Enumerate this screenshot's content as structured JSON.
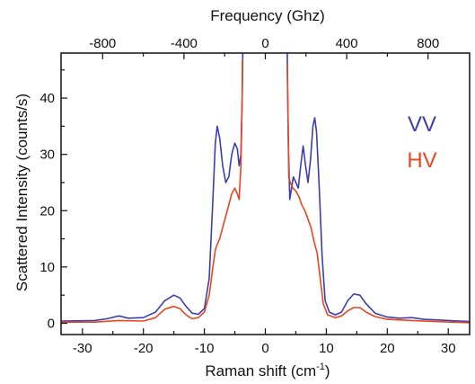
{
  "chart_data": {
    "type": "line",
    "title": "",
    "xlabel": "Raman shift (cm",
    "xlabel_sup": "-1",
    "xlabel_close": ")",
    "ylabel": "Scattered Intensity (counts/s)",
    "top_axis_label": "Frequency (Ghz)",
    "xlim": [
      -33.5,
      33.5
    ],
    "ylim": [
      -2,
      48
    ],
    "x_ticks": [
      -30,
      -20,
      -10,
      0,
      10,
      20,
      30
    ],
    "x_tick_labels": [
      "-30",
      "-20",
      "-10",
      "0",
      "10",
      "20",
      "30"
    ],
    "y_ticks": [
      0,
      10,
      20,
      30,
      40
    ],
    "y_tick_labels": [
      "0",
      "10",
      "20",
      "30",
      "40"
    ],
    "top_ticks_ghz": [
      -800,
      -400,
      0,
      400,
      800
    ],
    "top_tick_labels": [
      "-800",
      "-400",
      "0",
      "400",
      "800"
    ],
    "ghz_per_cm1": 29.9792,
    "grid": false,
    "legend_placement": "right",
    "series": [
      {
        "name": "VV",
        "color": "#3b3fae",
        "segments": [
          [
            [
              -33.5,
              0.4
            ],
            [
              -28,
              0.5
            ],
            [
              -26,
              0.8
            ],
            [
              -24,
              1.3
            ],
            [
              -22.5,
              0.9
            ],
            [
              -20,
              1.0
            ],
            [
              -18,
              2.0
            ],
            [
              -16.5,
              4.0
            ],
            [
              -15,
              5.0
            ],
            [
              -14,
              4.5
            ],
            [
              -13,
              3.0
            ],
            [
              -12,
              1.8
            ],
            [
              -11,
              1.6
            ],
            [
              -10,
              2.6
            ],
            [
              -9.2,
              8
            ],
            [
              -8.6,
              22
            ],
            [
              -8.2,
              32
            ],
            [
              -7.9,
              35
            ],
            [
              -7.5,
              33
            ],
            [
              -7.0,
              28
            ],
            [
              -6.5,
              25
            ],
            [
              -6.0,
              26
            ],
            [
              -5.5,
              30
            ],
            [
              -5.0,
              32
            ],
            [
              -4.6,
              31
            ],
            [
              -4.3,
              28
            ],
            [
              -4.0,
              30
            ],
            [
              -3.8,
              40
            ],
            [
              -3.7,
              48
            ]
          ],
          [
            [
              3.6,
              48
            ],
            [
              3.65,
              42
            ],
            [
              3.8,
              31
            ],
            [
              4.0,
              22
            ],
            [
              4.3,
              24
            ],
            [
              4.6,
              26
            ],
            [
              5.0,
              25
            ],
            [
              5.4,
              24
            ],
            [
              5.8,
              28
            ],
            [
              6.2,
              31.5
            ],
            [
              6.6,
              28
            ],
            [
              7.0,
              25
            ],
            [
              7.4,
              29
            ],
            [
              7.8,
              35
            ],
            [
              8.1,
              36.5
            ],
            [
              8.4,
              34
            ],
            [
              8.8,
              25
            ],
            [
              9.3,
              12
            ],
            [
              9.8,
              4
            ],
            [
              10.5,
              2
            ],
            [
              11.5,
              1.5
            ],
            [
              12.5,
              2.0
            ],
            [
              13.5,
              4.0
            ],
            [
              14.5,
              5.2
            ],
            [
              15.5,
              5.0
            ],
            [
              16.5,
              3.5
            ],
            [
              18,
              1.8
            ],
            [
              20,
              1.1
            ],
            [
              22,
              0.9
            ],
            [
              24,
              1.0
            ],
            [
              26,
              0.7
            ],
            [
              28,
              0.6
            ],
            [
              33.5,
              0.3
            ]
          ]
        ]
      },
      {
        "name": "HV",
        "color": "#e8461f",
        "segments": [
          [
            [
              -33.5,
              0.2
            ],
            [
              -28,
              0.2
            ],
            [
              -24,
              0.5
            ],
            [
              -20,
              0.4
            ],
            [
              -18,
              1.0
            ],
            [
              -16.5,
              2.5
            ],
            [
              -15,
              3.0
            ],
            [
              -14,
              2.6
            ],
            [
              -13,
              1.5
            ],
            [
              -12,
              0.8
            ],
            [
              -11,
              1.0
            ],
            [
              -10,
              2.0
            ],
            [
              -9.2,
              5
            ],
            [
              -8.6,
              10
            ],
            [
              -8.2,
              13
            ],
            [
              -7.9,
              14
            ],
            [
              -7.5,
              15
            ],
            [
              -7.0,
              17
            ],
            [
              -6.5,
              19
            ],
            [
              -6.0,
              21
            ],
            [
              -5.5,
              23
            ],
            [
              -5.0,
              24
            ],
            [
              -4.6,
              23
            ],
            [
              -4.3,
              22
            ],
            [
              -4.0,
              28
            ],
            [
              -3.8,
              40
            ],
            [
              -3.75,
              47
            ]
          ],
          [
            [
              3.6,
              46
            ],
            [
              3.7,
              38
            ],
            [
              3.85,
              26
            ],
            [
              4.1,
              25
            ],
            [
              4.5,
              24
            ],
            [
              5.0,
              23.5
            ],
            [
              5.5,
              22.5
            ],
            [
              6.0,
              21
            ],
            [
              6.5,
              20
            ],
            [
              7.0,
              18.5
            ],
            [
              7.5,
              17
            ],
            [
              8.0,
              14.5
            ],
            [
              8.5,
              12.5
            ],
            [
              9.0,
              8
            ],
            [
              9.5,
              3.5
            ],
            [
              10.2,
              1.5
            ],
            [
              11.5,
              1.0
            ],
            [
              12.5,
              1.3
            ],
            [
              13.5,
              2.2
            ],
            [
              14.5,
              2.8
            ],
            [
              15.5,
              2.8
            ],
            [
              16.5,
              2.0
            ],
            [
              18,
              1.2
            ],
            [
              20,
              0.7
            ],
            [
              24,
              0.5
            ],
            [
              28,
              0.3
            ],
            [
              33.5,
              0.1
            ]
          ]
        ]
      }
    ]
  }
}
